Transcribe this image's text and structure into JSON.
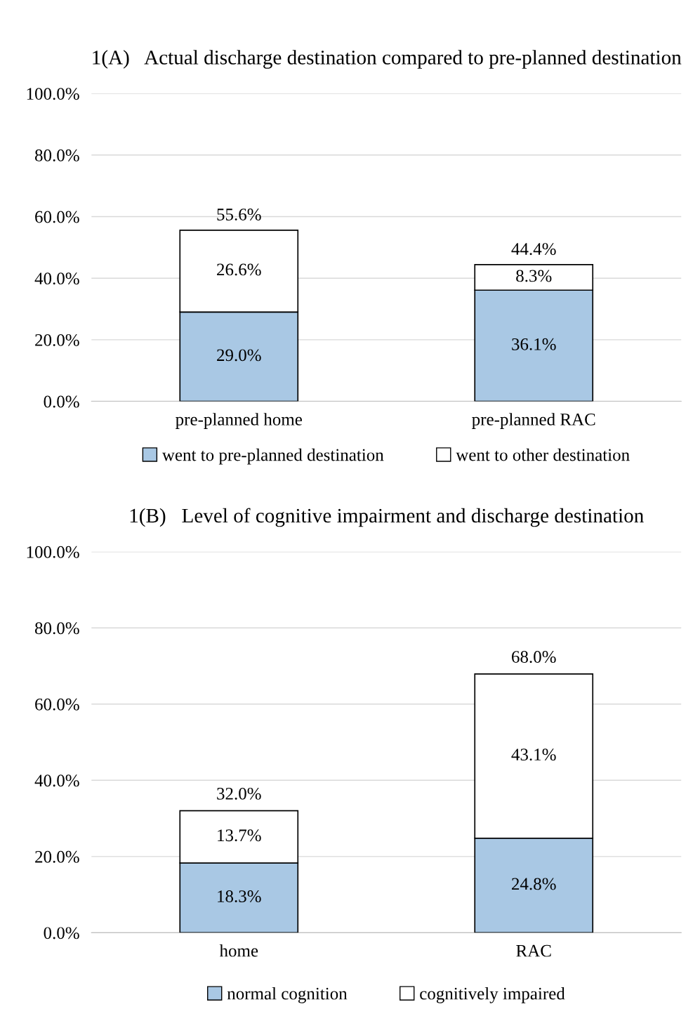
{
  "chart_data": [
    {
      "type": "bar",
      "stacked": true,
      "title": "1(A)   Actual discharge destination compared to pre-planned destination",
      "categories": [
        "pre-planned home",
        "pre-planned RAC"
      ],
      "series": [
        {
          "name": "went to pre-planned destination",
          "color": "#a9c8e4",
          "values": [
            29.0,
            36.1
          ]
        },
        {
          "name": "went to other destination",
          "color": "#ffffff",
          "values": [
            26.6,
            8.3
          ]
        }
      ],
      "ylim": [
        0,
        100
      ],
      "yticks": [
        {
          "value": 0,
          "label": "0.0%"
        },
        {
          "value": 20,
          "label": "20.0%"
        },
        {
          "value": 40,
          "label": "40.0%"
        },
        {
          "value": 60,
          "label": "60.0%"
        },
        {
          "value": 80,
          "label": "80.0%"
        },
        {
          "value": 100,
          "label": "100.0%"
        }
      ],
      "value_labels": [
        [
          "29.0%",
          "36.1%"
        ],
        [
          "26.6%",
          "8.3%"
        ]
      ],
      "totals": [
        "55.6%",
        "44.4%"
      ],
      "grid": "y",
      "legend": "bottom"
    },
    {
      "type": "bar",
      "stacked": true,
      "title": "1(B)   Level of cognitive impairment and discharge destination",
      "categories": [
        "home",
        "RAC"
      ],
      "series": [
        {
          "name": "normal cognition",
          "color": "#a9c8e4",
          "values": [
            18.3,
            24.8
          ]
        },
        {
          "name": "cognitively impaired",
          "color": "#ffffff",
          "values": [
            13.7,
            43.1
          ]
        }
      ],
      "ylim": [
        0,
        100
      ],
      "yticks": [
        {
          "value": 0,
          "label": "0.0%"
        },
        {
          "value": 20,
          "label": "20.0%"
        },
        {
          "value": 40,
          "label": "40.0%"
        },
        {
          "value": 60,
          "label": "60.0%"
        },
        {
          "value": 80,
          "label": "80.0%"
        },
        {
          "value": 100,
          "label": "100.0%"
        }
      ],
      "value_labels": [
        [
          "18.3%",
          "24.8%"
        ],
        [
          "13.7%",
          "43.1%"
        ]
      ],
      "totals": [
        "32.0%",
        "68.0%"
      ],
      "grid": "y",
      "legend": "bottom"
    }
  ]
}
